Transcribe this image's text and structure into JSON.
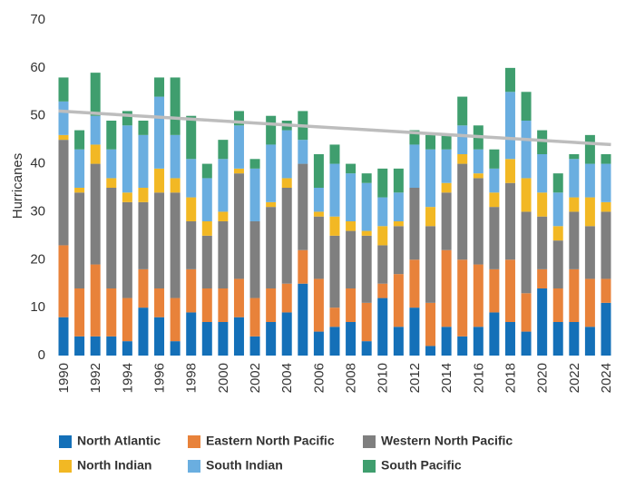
{
  "chart_data": {
    "type": "stacked_bar",
    "y_label": "Hurricanes",
    "categories": [
      "1990",
      null,
      "1992",
      null,
      "1994",
      null,
      "1996",
      null,
      "1998",
      null,
      "2000",
      null,
      "2002",
      null,
      "2004",
      null,
      "2006",
      null,
      "2008",
      null,
      "2010",
      null,
      "2012",
      null,
      "2014",
      null,
      "2016",
      null,
      "2018",
      null,
      "2020",
      null,
      "2022",
      null,
      "2024"
    ],
    "series": [
      {
        "name": "North Atlantic",
        "color": "#1470b8",
        "values": [
          8,
          4,
          4,
          4,
          3,
          10,
          8,
          3,
          9,
          7,
          7,
          8,
          4,
          7,
          9,
          15,
          5,
          6,
          7,
          3,
          12,
          6,
          10,
          2,
          6,
          4,
          6,
          9,
          7,
          5,
          14,
          7,
          7,
          6,
          11
        ]
      },
      {
        "name": "Eastern North Pacific",
        "color": "#e8823a",
        "values": [
          15,
          10,
          15,
          10,
          9,
          8,
          6,
          9,
          9,
          7,
          7,
          8,
          8,
          7,
          6,
          7,
          11,
          4,
          7,
          8,
          3,
          11,
          10,
          9,
          16,
          16,
          13,
          9,
          13,
          8,
          4,
          7,
          11,
          10,
          5
        ]
      },
      {
        "name": "Western North Pacific",
        "color": "#7f7f7f",
        "values": [
          22,
          20,
          21,
          21,
          20,
          14,
          20,
          22,
          10,
          11,
          14,
          22,
          16,
          17,
          20,
          18,
          13,
          15,
          12,
          14,
          8,
          10,
          15,
          16,
          12,
          20,
          18,
          13,
          16,
          17,
          11,
          10,
          12,
          11,
          14
        ]
      },
      {
        "name": "North Indian",
        "color": "#f2b824",
        "values": [
          1,
          1,
          4,
          2,
          2,
          3,
          5,
          3,
          5,
          3,
          2,
          1,
          0,
          1,
          2,
          0,
          1,
          4,
          2,
          1,
          4,
          1,
          0,
          4,
          2,
          2,
          1,
          3,
          5,
          7,
          5,
          3,
          3,
          6,
          2
        ]
      },
      {
        "name": "South Indian",
        "color": "#6aaee0",
        "values": [
          7,
          8,
          6,
          6,
          14,
          11,
          15,
          9,
          8,
          9,
          11,
          9,
          11,
          12,
          10,
          5,
          5,
          11,
          10,
          10,
          6,
          6,
          9,
          12,
          7,
          6,
          5,
          5,
          14,
          12,
          8,
          7,
          8,
          7,
          8
        ]
      },
      {
        "name": "South Pacific",
        "color": "#3f9e6e",
        "values": [
          5,
          4,
          9,
          6,
          3,
          3,
          4,
          12,
          9,
          3,
          4,
          3,
          2,
          6,
          2,
          6,
          7,
          4,
          2,
          2,
          6,
          5,
          3,
          3,
          3,
          6,
          5,
          4,
          5,
          6,
          5,
          4,
          1,
          6,
          2
        ]
      }
    ],
    "trend_line": {
      "values": [
        51,
        44
      ],
      "color": "#bdbdbd"
    },
    "ylim": [
      0,
      70
    ],
    "yticks": [
      0,
      10,
      20,
      30,
      40,
      50,
      60,
      70
    ],
    "grid": false
  }
}
